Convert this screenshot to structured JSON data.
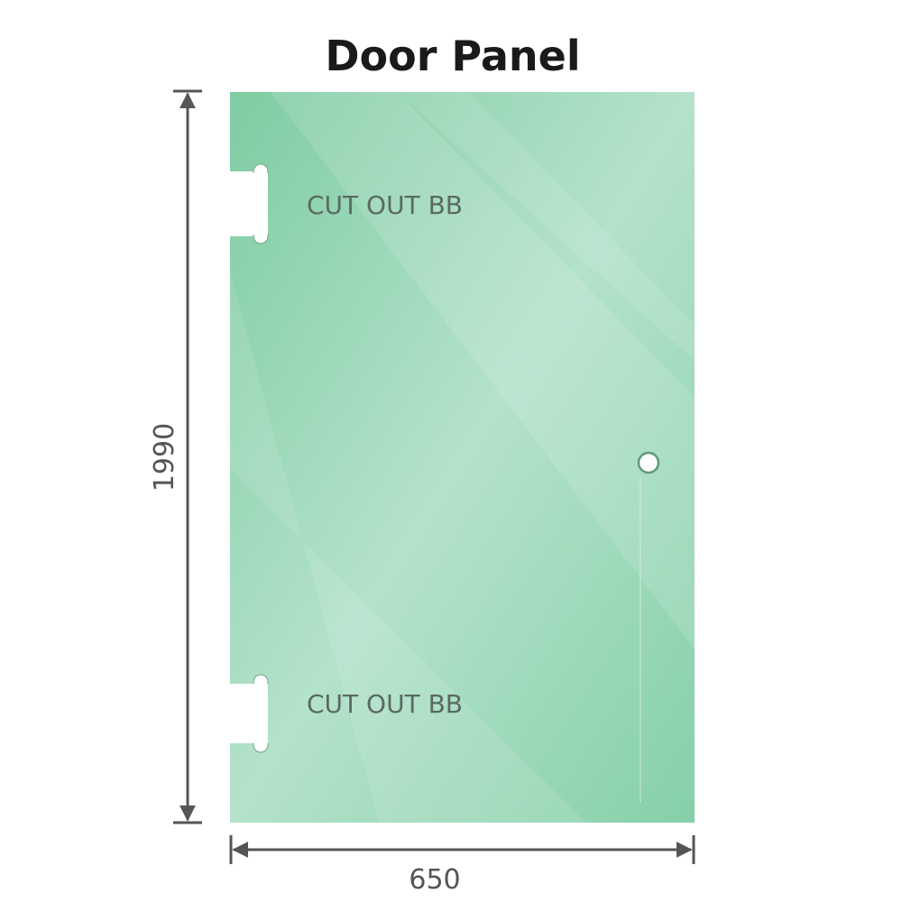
{
  "title": "Door Panel",
  "panel": {
    "glass_color": "#86cfa6",
    "cutout_top_label": "CUT OUT BB",
    "cutout_bottom_label": "CUT OUT BB"
  },
  "dimensions": {
    "height": "1990",
    "width": "650",
    "line_color": "#555555"
  }
}
